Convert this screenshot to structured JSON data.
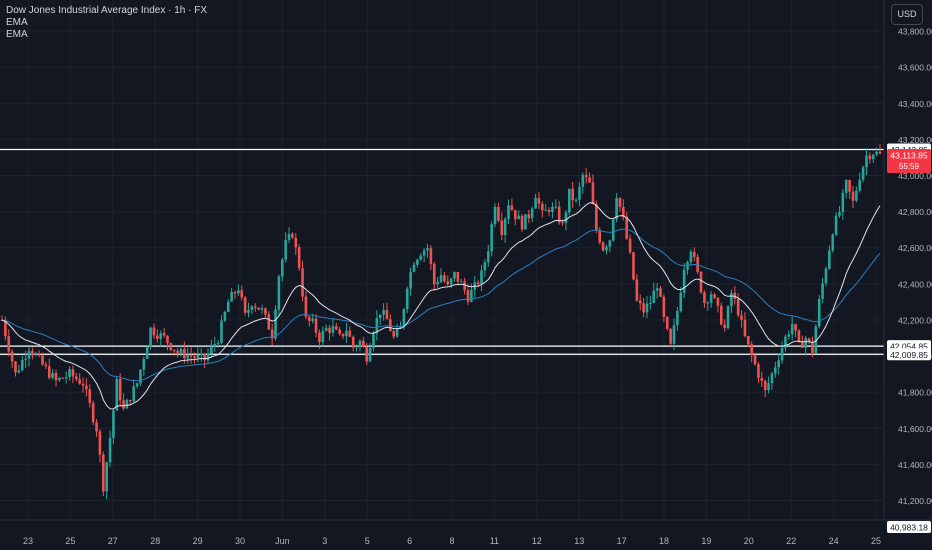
{
  "header": {
    "symbol_title": "Dow Jones Industrial Average Index · 1h · FX",
    "indicators": [
      "EMA",
      "EMA"
    ],
    "currency": "USD"
  },
  "colors": {
    "background": "#131722",
    "up": "#26a69a",
    "down": "#ef5350",
    "ema_fast": "#e0e3eb",
    "ema_slow": "#2a7fc0",
    "level_line": "#ffffff",
    "last_price_badge": "#f23645",
    "axis_text": "#b2b5be",
    "grid": "#1e222d"
  },
  "chart_data": {
    "type": "candlestick",
    "y_axis_ticks": [
      43800,
      43600,
      43400,
      43200,
      43000,
      42800,
      42600,
      42400,
      42200,
      42000,
      41800,
      41600,
      41400,
      41200
    ],
    "y_axis_labels": [
      "43,800.00",
      "43,600.00",
      "43,400.00",
      "43,200.00",
      "43,000.00",
      "42,800.00",
      "42,600.00",
      "42,400.00",
      "42,200.00",
      "42,000.00",
      "41,800.00",
      "41,600.00",
      "41,400.00",
      "41,200.00"
    ],
    "x_axis_labels": [
      "23",
      "25",
      "27",
      "28",
      "29",
      "30",
      "Jun",
      "3",
      "5",
      "6",
      "8",
      "11",
      "12",
      "13",
      "17",
      "18",
      "19",
      "20",
      "22",
      "24",
      "25"
    ],
    "horizontal_levels": [
      {
        "price": 43143.85,
        "label": "43,143.85"
      },
      {
        "price": 42054.85,
        "label": "42,054.85"
      },
      {
        "price": 42009.85,
        "label": "42,009.85"
      }
    ],
    "last_price": {
      "price": 43113.85,
      "label": "43,113.85",
      "countdown": "55:59"
    },
    "bottom_marker": {
      "price": 40983.18,
      "label": "40,983.18"
    },
    "price_path": [
      [
        0,
        42200
      ],
      [
        4,
        41900
      ],
      [
        8,
        42050
      ],
      [
        12,
        41950
      ],
      [
        16,
        41860
      ],
      [
        20,
        41900
      ],
      [
        24,
        41850
      ],
      [
        28,
        41600
      ],
      [
        30,
        41280
      ],
      [
        32,
        41550
      ],
      [
        34,
        41850
      ],
      [
        36,
        41700
      ],
      [
        40,
        41850
      ],
      [
        44,
        42150
      ],
      [
        48,
        42100
      ],
      [
        52,
        42020
      ],
      [
        56,
        42000
      ],
      [
        60,
        41980
      ],
      [
        64,
        42100
      ],
      [
        67,
        42300
      ],
      [
        70,
        42380
      ],
      [
        72,
        42220
      ],
      [
        74,
        42300
      ],
      [
        77,
        42250
      ],
      [
        80,
        42120
      ],
      [
        82,
        42450
      ],
      [
        84,
        42620
      ],
      [
        86,
        42680
      ],
      [
        88,
        42500
      ],
      [
        90,
        42200
      ],
      [
        92,
        42180
      ],
      [
        94,
        42100
      ],
      [
        96,
        42150
      ],
      [
        98,
        42150
      ],
      [
        100,
        42100
      ],
      [
        102,
        42150
      ],
      [
        104,
        42050
      ],
      [
        106,
        42080
      ],
      [
        108,
        42000
      ],
      [
        110,
        42150
      ],
      [
        112,
        42250
      ],
      [
        114,
        42200
      ],
      [
        116,
        42100
      ],
      [
        118,
        42150
      ],
      [
        120,
        42400
      ],
      [
        122,
        42530
      ],
      [
        124,
        42580
      ],
      [
        126,
        42600
      ],
      [
        128,
        42400
      ],
      [
        130,
        42450
      ],
      [
        132,
        42380
      ],
      [
        134,
        42450
      ],
      [
        136,
        42400
      ],
      [
        138,
        42330
      ],
      [
        140,
        42380
      ],
      [
        142,
        42450
      ],
      [
        144,
        42600
      ],
      [
        146,
        42850
      ],
      [
        148,
        42700
      ],
      [
        150,
        42850
      ],
      [
        152,
        42780
      ],
      [
        154,
        42730
      ],
      [
        156,
        42780
      ],
      [
        158,
        42900
      ],
      [
        160,
        42780
      ],
      [
        162,
        42820
      ],
      [
        164,
        42800
      ],
      [
        166,
        42720
      ],
      [
        168,
        42900
      ],
      [
        170,
        42850
      ],
      [
        172,
        43000
      ],
      [
        174,
        42950
      ],
      [
        176,
        42700
      ],
      [
        178,
        42600
      ],
      [
        180,
        42650
      ],
      [
        182,
        42900
      ],
      [
        184,
        42750
      ],
      [
        186,
        42550
      ],
      [
        188,
        42300
      ],
      [
        190,
        42250
      ],
      [
        192,
        42300
      ],
      [
        194,
        42400
      ],
      [
        196,
        42200
      ],
      [
        198,
        42050
      ],
      [
        200,
        42250
      ],
      [
        202,
        42500
      ],
      [
        204,
        42600
      ],
      [
        206,
        42450
      ],
      [
        208,
        42300
      ],
      [
        210,
        42350
      ],
      [
        212,
        42250
      ],
      [
        214,
        42150
      ],
      [
        216,
        42350
      ],
      [
        218,
        42250
      ],
      [
        220,
        42100
      ],
      [
        222,
        42000
      ],
      [
        224,
        41900
      ],
      [
        226,
        41800
      ],
      [
        228,
        41900
      ],
      [
        230,
        42000
      ],
      [
        232,
        42100
      ],
      [
        234,
        42180
      ],
      [
        236,
        42050
      ],
      [
        238,
        42100
      ],
      [
        240,
        42030
      ],
      [
        242,
        42300
      ],
      [
        244,
        42500
      ],
      [
        246,
        42700
      ],
      [
        248,
        42800
      ],
      [
        250,
        42950
      ],
      [
        252,
        42850
      ],
      [
        254,
        43000
      ],
      [
        256,
        43110
      ],
      [
        258,
        43130
      ],
      [
        260,
        43113.85
      ]
    ]
  }
}
